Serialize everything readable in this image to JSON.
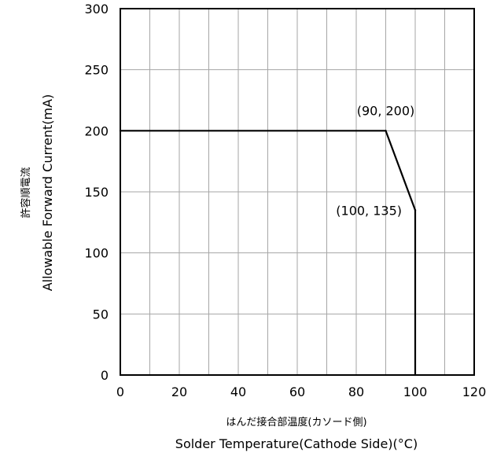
{
  "chart_data": {
    "type": "line",
    "title": "",
    "xlabel_jp": "はんだ接合部温度(カソード側)",
    "xlabel": "Solder Temperature(Cathode Side)(°C)",
    "ylabel_jp": "許容順電流",
    "ylabel": "Allowable Forward Current(mA)",
    "xlim": [
      0,
      120
    ],
    "ylim": [
      0,
      300
    ],
    "xticks": [
      "0",
      "20",
      "40",
      "60",
      "80",
      "100",
      "120"
    ],
    "yticks": [
      "0",
      "50",
      "100",
      "150",
      "200",
      "250",
      "300"
    ],
    "x_grid_step": 10,
    "y_grid_step": 50,
    "grid": true,
    "series": [
      {
        "x": [
          0,
          90,
          100,
          100
        ],
        "y": [
          200,
          200,
          135,
          0
        ]
      }
    ],
    "annotations": [
      {
        "text": "(90, 200)",
        "x": 90,
        "y": 200
      },
      {
        "text": "(100, 135)",
        "x": 100,
        "y": 135
      }
    ]
  }
}
